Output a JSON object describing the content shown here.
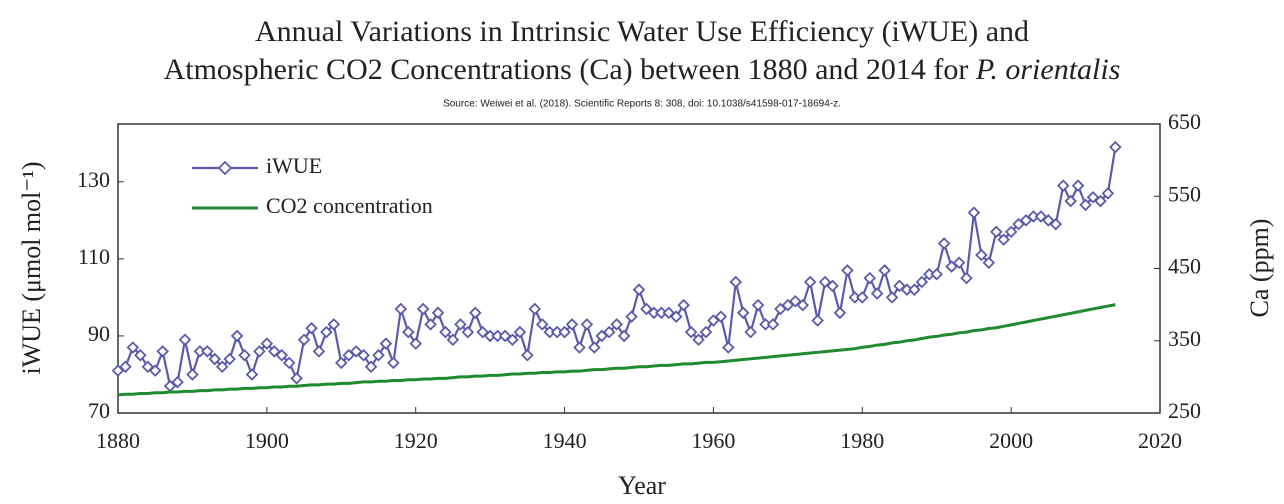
{
  "chart_data": {
    "type": "line",
    "title_lines": [
      "Annual Variations in Intrinsic Water Use Efficiency (iWUE) and",
      "Atmospheric CO2 Concentrations (Ca) between 1880 and 2014 for "
    ],
    "title_species": "P. orientalis",
    "subtitle": "Source: Weiwei et al. (2018). Scientific Reports 8: 308, doi: 10.1038/s41598-017-18694-z.",
    "x_label": "Year",
    "y_label": "iWUE (μmol mol⁻¹)",
    "y2_label": "Ca (ppm)",
    "x": [
      1880,
      1881,
      1882,
      1883,
      1884,
      1885,
      1886,
      1887,
      1888,
      1889,
      1890,
      1891,
      1892,
      1893,
      1894,
      1895,
      1896,
      1897,
      1898,
      1899,
      1900,
      1901,
      1902,
      1903,
      1904,
      1905,
      1906,
      1907,
      1908,
      1909,
      1910,
      1911,
      1912,
      1913,
      1914,
      1915,
      1916,
      1917,
      1918,
      1919,
      1920,
      1921,
      1922,
      1923,
      1924,
      1925,
      1926,
      1927,
      1928,
      1929,
      1930,
      1931,
      1932,
      1933,
      1934,
      1935,
      1936,
      1937,
      1938,
      1939,
      1940,
      1941,
      1942,
      1943,
      1944,
      1945,
      1946,
      1947,
      1948,
      1949,
      1950,
      1951,
      1952,
      1953,
      1954,
      1955,
      1956,
      1957,
      1958,
      1959,
      1960,
      1961,
      1962,
      1963,
      1964,
      1965,
      1966,
      1967,
      1968,
      1969,
      1970,
      1971,
      1972,
      1973,
      1974,
      1975,
      1976,
      1977,
      1978,
      1979,
      1980,
      1981,
      1982,
      1983,
      1984,
      1985,
      1986,
      1987,
      1988,
      1989,
      1990,
      1991,
      1992,
      1993,
      1994,
      1995,
      1996,
      1997,
      1998,
      1999,
      2000,
      2001,
      2002,
      2003,
      2004,
      2005,
      2006,
      2007,
      2008,
      2009,
      2010,
      2011,
      2012,
      2013,
      2014
    ],
    "series": [
      {
        "name": "iWUE",
        "color": "#5b5ba9",
        "values": [
          81,
          82,
          87,
          85,
          82,
          81,
          86,
          77,
          78,
          89,
          80,
          86,
          86,
          84,
          82,
          84,
          90,
          85,
          80,
          86,
          88,
          86,
          85,
          83,
          79,
          89,
          92,
          86,
          91,
          93,
          83,
          85,
          86,
          85,
          82,
          85,
          88,
          83,
          97,
          91,
          88,
          97,
          93,
          96,
          91,
          89,
          93,
          91,
          96,
          91,
          90,
          90,
          90,
          89,
          91,
          85,
          97,
          93,
          91,
          91,
          91,
          93,
          87,
          93,
          87,
          90,
          91,
          93,
          90,
          95,
          102,
          97,
          96,
          96,
          96,
          95,
          98,
          91,
          89,
          91,
          94,
          95,
          87,
          104,
          96,
          91,
          98,
          93,
          93,
          97,
          98,
          99,
          98,
          104,
          94,
          104,
          103,
          96,
          107,
          100,
          100,
          105,
          101,
          107,
          100,
          103,
          102,
          102,
          104,
          106,
          106,
          114,
          108,
          109,
          105,
          122,
          111,
          109,
          117,
          115,
          117,
          119,
          120,
          121,
          121,
          120,
          119,
          129,
          125,
          129,
          124,
          126,
          125,
          127,
          139
        ]
      },
      {
        "name": "CO2 concentration",
        "color": "#1f8a2f",
        "axis": "y2",
        "values": [
          275,
          276,
          276,
          277,
          277,
          278,
          278,
          279,
          279,
          280,
          280,
          281,
          281,
          282,
          282,
          283,
          283,
          284,
          284,
          285,
          285,
          286,
          286,
          287,
          287,
          288,
          289,
          289,
          290,
          290,
          291,
          291,
          292,
          293,
          293,
          294,
          294,
          295,
          295,
          296,
          296,
          297,
          297,
          298,
          298,
          299,
          300,
          300,
          301,
          301,
          302,
          302,
          303,
          304,
          304,
          305,
          305,
          306,
          306,
          307,
          307,
          308,
          308,
          309,
          310,
          310,
          311,
          312,
          312,
          313,
          314,
          314,
          315,
          316,
          316,
          317,
          318,
          318,
          319,
          320,
          320,
          321,
          322,
          323,
          324,
          325,
          326,
          327,
          328,
          329,
          330,
          331,
          332,
          333,
          334,
          335,
          336,
          337,
          338,
          339,
          341,
          342,
          344,
          345,
          347,
          348,
          350,
          351,
          353,
          355,
          356,
          358,
          359,
          361,
          362,
          364,
          365,
          367,
          368,
          370,
          372,
          374,
          376,
          378,
          380,
          382,
          384,
          386,
          388,
          390,
          392,
          394,
          396,
          398,
          400
        ]
      }
    ],
    "xlim": [
      1880,
      2020
    ],
    "xticks": [
      1880,
      1900,
      1920,
      1940,
      1960,
      1980,
      2000,
      2020
    ],
    "ylim": [
      70,
      145
    ],
    "yticks": [
      70,
      90,
      110,
      130
    ],
    "y2lim": [
      250,
      650
    ],
    "y2ticks": [
      250,
      350,
      450,
      550,
      650
    ],
    "legend": "upper left",
    "grid": false
  }
}
